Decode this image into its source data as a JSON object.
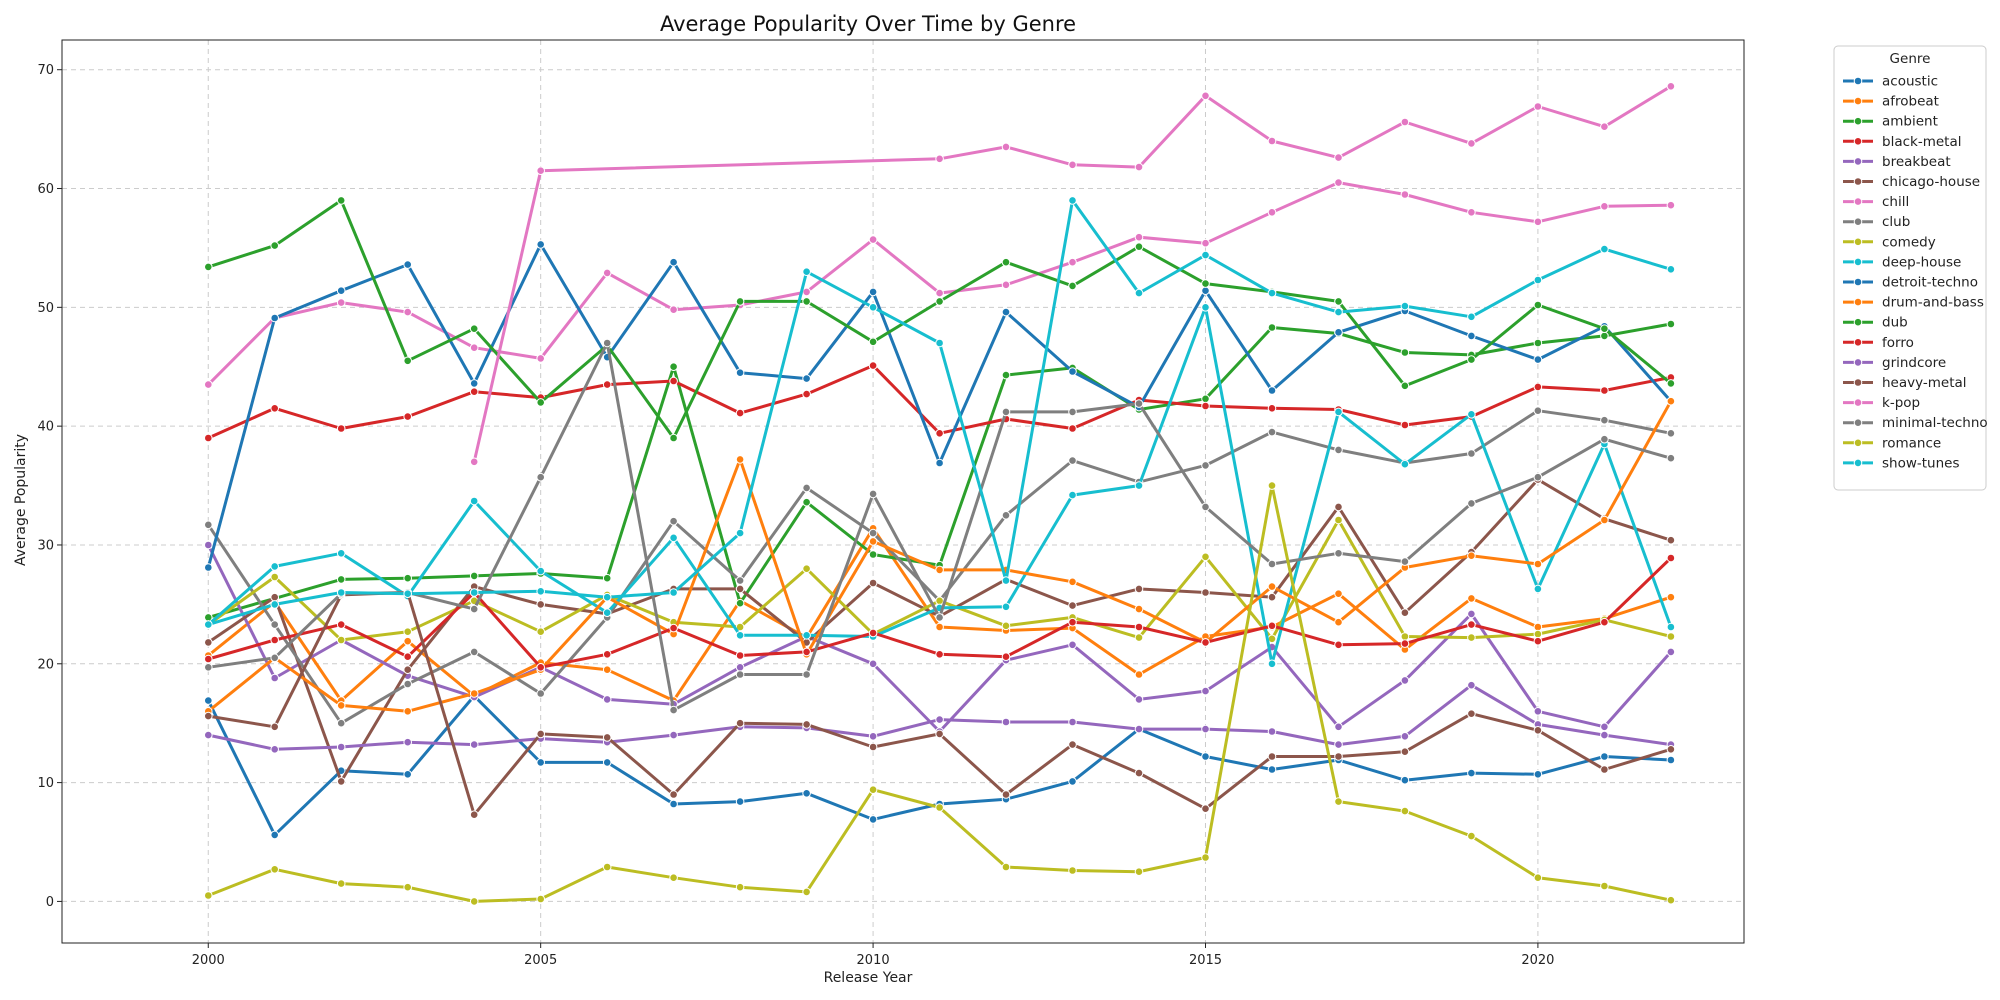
{
  "chart_data": {
    "type": "line",
    "title": "Average Popularity Over Time by Genre",
    "xlabel": "Release Year",
    "ylabel": "Average Popularity",
    "xlim": [
      1997.8,
      2023.1
    ],
    "ylim": [
      -3.5,
      72.5
    ],
    "xticks": [
      2000,
      2005,
      2010,
      2015,
      2020
    ],
    "yticks": [
      0,
      10,
      20,
      30,
      40,
      50,
      60,
      70
    ],
    "grid": true,
    "legend": {
      "title": "Genre",
      "placement": "outside-top-right"
    },
    "x": [
      2000,
      2001,
      2002,
      2003,
      2004,
      2005,
      2006,
      2007,
      2008,
      2009,
      2010,
      2011,
      2012,
      2013,
      2014,
      2015,
      2016,
      2017,
      2018,
      2019,
      2020,
      2021,
      2022
    ],
    "series": [
      {
        "name": "acoustic",
        "color": "#1f77b4",
        "values": [
          16.9,
          5.6,
          11.0,
          10.7,
          17.3,
          11.7,
          11.7,
          8.2,
          8.4,
          9.1,
          6.9,
          8.2,
          8.6,
          10.1,
          14.5,
          12.2,
          11.1,
          11.9,
          10.2,
          10.8,
          10.7,
          12.2,
          11.9
        ]
      },
      {
        "name": "afrobeat",
        "color": "#ff7f0e",
        "values": [
          20.7,
          25.2,
          16.9,
          21.9,
          17.3,
          20.1,
          19.5,
          16.9,
          25.3,
          22.2,
          31.4,
          23.1,
          22.8,
          23.0,
          19.1,
          22.3,
          23.1,
          25.9,
          21.2,
          25.5,
          23.1,
          23.8,
          25.6
        ]
      },
      {
        "name": "ambient",
        "color": "#2ca02c",
        "values": [
          23.9,
          25.5,
          27.1,
          27.2,
          27.4,
          27.6,
          27.2,
          45.0,
          25.1,
          33.6,
          29.2,
          28.3,
          44.3,
          44.9,
          41.4,
          42.3,
          48.3,
          47.8,
          46.2,
          46.0,
          47.0,
          47.6,
          48.6
        ]
      },
      {
        "name": "black-metal",
        "color": "#d62728",
        "values": [
          39.0,
          41.5,
          39.8,
          40.8,
          42.9,
          42.4,
          43.5,
          43.8,
          41.1,
          42.7,
          45.1,
          39.4,
          40.6,
          39.8,
          42.2,
          41.7,
          41.5,
          41.4,
          40.1,
          40.8,
          43.3,
          43.0,
          44.1
        ]
      },
      {
        "name": "breakbeat",
        "color": "#9467bd",
        "values": [
          30.0,
          18.8,
          22.0,
          19.0,
          17.2,
          19.7,
          17.0,
          16.6,
          19.7,
          22.3,
          20.0,
          14.3,
          20.3,
          21.6,
          17.0,
          17.7,
          21.4,
          14.7,
          18.6,
          24.2,
          16.0,
          14.7,
          21.0
        ]
      },
      {
        "name": "chicago-house",
        "color": "#8c564b",
        "values": [
          21.8,
          25.6,
          10.1,
          19.5,
          26.5,
          25.0,
          24.2,
          26.3,
          26.3,
          21.8,
          26.8,
          24.0,
          27.1,
          24.9,
          26.3,
          26.0,
          25.6,
          33.2,
          24.3,
          29.4,
          35.5,
          32.2,
          30.4
        ]
      },
      {
        "name": "chill",
        "color": "#e377c2",
        "values": [
          43.5,
          49.1,
          50.4,
          49.6,
          46.6,
          45.7,
          52.9,
          49.8,
          50.2,
          51.3,
          55.7,
          51.2,
          51.9,
          53.8,
          55.9,
          55.4,
          58.0,
          60.5,
          59.5,
          58.0,
          57.2,
          58.5,
          58.6
        ]
      },
      {
        "name": "club",
        "color": "#7f7f7f",
        "values": [
          31.7,
          23.3,
          15.0,
          18.3,
          21.0,
          17.5,
          23.9,
          32.0,
          27.0,
          34.8,
          31.0,
          25.3,
          32.5,
          37.1,
          35.3,
          36.7,
          39.5,
          38.0,
          36.9,
          37.7,
          41.3,
          40.5,
          39.4
        ]
      },
      {
        "name": "comedy",
        "color": "#bcbd22",
        "values": [
          23.3,
          27.3,
          22.0,
          22.7,
          25.3,
          22.7,
          25.8,
          23.5,
          23.1,
          28.0,
          22.5,
          25.3,
          23.2,
          23.9,
          22.2,
          29.0,
          22.1,
          32.1,
          22.3,
          22.2,
          22.5,
          23.7,
          22.3
        ]
      },
      {
        "name": "deep-house",
        "color": "#17becf",
        "values": [
          23.3,
          28.2,
          29.3,
          25.7,
          33.7,
          27.8,
          24.3,
          30.6,
          22.4,
          22.4,
          22.3,
          24.7,
          24.8,
          34.2,
          35.0,
          50.0,
          20.0,
          41.2,
          36.8,
          41.0,
          26.3,
          38.5,
          23.1
        ]
      },
      {
        "name": "detroit-techno",
        "color": "#1f77b4",
        "values": [
          28.1,
          49.1,
          51.4,
          53.6,
          43.6,
          55.3,
          45.8,
          53.8,
          44.5,
          44.0,
          51.3,
          36.9,
          49.6,
          44.6,
          41.6,
          51.4,
          43.0,
          47.9,
          49.7,
          47.6,
          45.6,
          48.4,
          42.1
        ]
      },
      {
        "name": "drum-and-bass",
        "color": "#ff7f0e",
        "values": [
          16.0,
          20.5,
          16.5,
          16.0,
          17.5,
          19.5,
          25.6,
          22.5,
          37.2,
          20.8,
          30.3,
          27.9,
          27.9,
          26.9,
          24.6,
          21.8,
          26.5,
          23.5,
          28.1,
          29.1,
          28.4,
          32.1,
          42.1
        ]
      },
      {
        "name": "dub",
        "color": "#2ca02c",
        "values": [
          53.4,
          55.2,
          59.0,
          45.5,
          48.2,
          42.0,
          46.8,
          39.0,
          50.5,
          50.5,
          47.1,
          50.5,
          53.8,
          51.8,
          55.1,
          52.0,
          51.3,
          50.5,
          43.4,
          45.6,
          50.2,
          48.2,
          43.6
        ]
      },
      {
        "name": "forro",
        "color": "#d62728",
        "values": [
          20.4,
          22.0,
          23.3,
          20.6,
          26.0,
          19.7,
          20.8,
          23.0,
          20.7,
          21.0,
          22.6,
          20.8,
          20.6,
          23.5,
          23.1,
          21.8,
          23.2,
          21.6,
          21.7,
          23.3,
          21.9,
          23.5,
          28.9
        ]
      },
      {
        "name": "grindcore",
        "color": "#9467bd",
        "values": [
          14.0,
          12.8,
          13.0,
          13.4,
          13.2,
          13.7,
          13.4,
          14.0,
          14.7,
          14.6,
          13.9,
          15.3,
          15.1,
          15.1,
          14.5,
          14.5,
          14.3,
          13.2,
          13.9,
          18.2,
          14.9,
          14.0,
          13.2
        ]
      },
      {
        "name": "heavy-metal",
        "color": "#8c564b",
        "values": [
          15.6,
          14.7,
          25.8,
          26.0,
          7.3,
          14.1,
          13.8,
          9.0,
          15.0,
          14.9,
          13.0,
          14.1,
          9.0,
          13.2,
          10.8,
          7.8,
          12.2,
          12.2,
          12.6,
          15.8,
          14.4,
          11.1,
          12.8
        ]
      },
      {
        "name": "k-pop",
        "color": "#e377c2",
        "values": [
          null,
          null,
          null,
          null,
          37.0,
          61.5,
          null,
          null,
          null,
          null,
          null,
          62.5,
          63.5,
          62.0,
          61.8,
          67.8,
          64.0,
          62.6,
          65.6,
          63.8,
          66.9,
          65.2,
          68.6
        ]
      },
      {
        "name": "minimal-techno",
        "color": "#7f7f7f",
        "values": [
          19.7,
          20.5,
          25.9,
          26.0,
          24.6,
          35.7,
          47.0,
          16.1,
          19.1,
          19.1,
          34.3,
          23.9,
          41.2,
          41.2,
          41.9,
          33.2,
          28.4,
          29.3,
          28.6,
          33.5,
          35.7,
          38.9,
          37.3
        ]
      },
      {
        "name": "romance",
        "color": "#bcbd22",
        "values": [
          0.5,
          2.7,
          1.5,
          1.2,
          0.0,
          0.2,
          2.9,
          2.0,
          1.2,
          0.8,
          9.4,
          7.9,
          2.9,
          2.6,
          2.5,
          3.7,
          35.0,
          8.4,
          7.6,
          5.5,
          2.0,
          1.3,
          0.1
        ]
      },
      {
        "name": "show-tunes",
        "color": "#17becf",
        "values": [
          23.3,
          25.0,
          26.0,
          25.9,
          26.0,
          26.1,
          25.6,
          26.0,
          31.0,
          53.0,
          50.0,
          47.0,
          27.0,
          59.0,
          51.2,
          54.4,
          51.2,
          49.6,
          50.1,
          49.2,
          52.3,
          54.9,
          53.2
        ]
      }
    ]
  }
}
